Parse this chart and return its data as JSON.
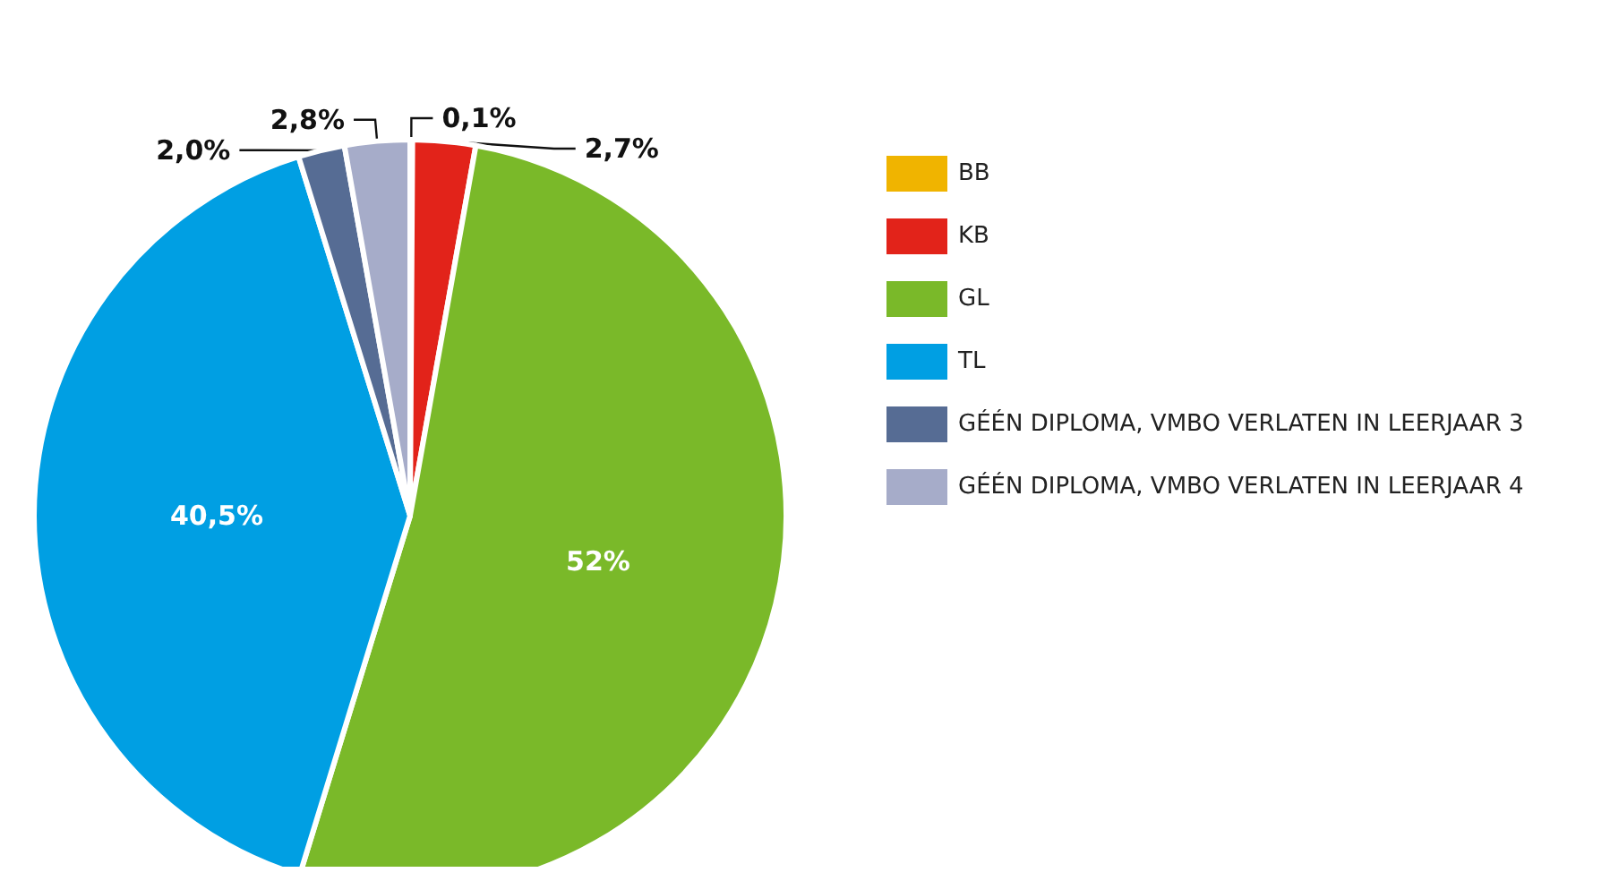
{
  "chart_data": {
    "type": "pie",
    "categories": [
      "BB",
      "KB",
      "GL",
      "TL",
      "GÉÉN DIPLOMA, VMBO VERLATEN IN LEERJAAR 3",
      "GÉÉN DIPLOMA, VMBO VERLATEN IN LEERJAAR 4"
    ],
    "values": [
      0.1,
      2.7,
      52,
      40.5,
      2.0,
      2.8
    ],
    "value_labels": [
      "0,1%",
      "2,7%",
      "52%",
      "40,5%",
      "2,0%",
      "2,8%"
    ],
    "colors": [
      "#f0b400",
      "#e2231a",
      "#7ab929",
      "#009fe3",
      "#566c94",
      "#a6acc9"
    ],
    "legend": "right"
  }
}
